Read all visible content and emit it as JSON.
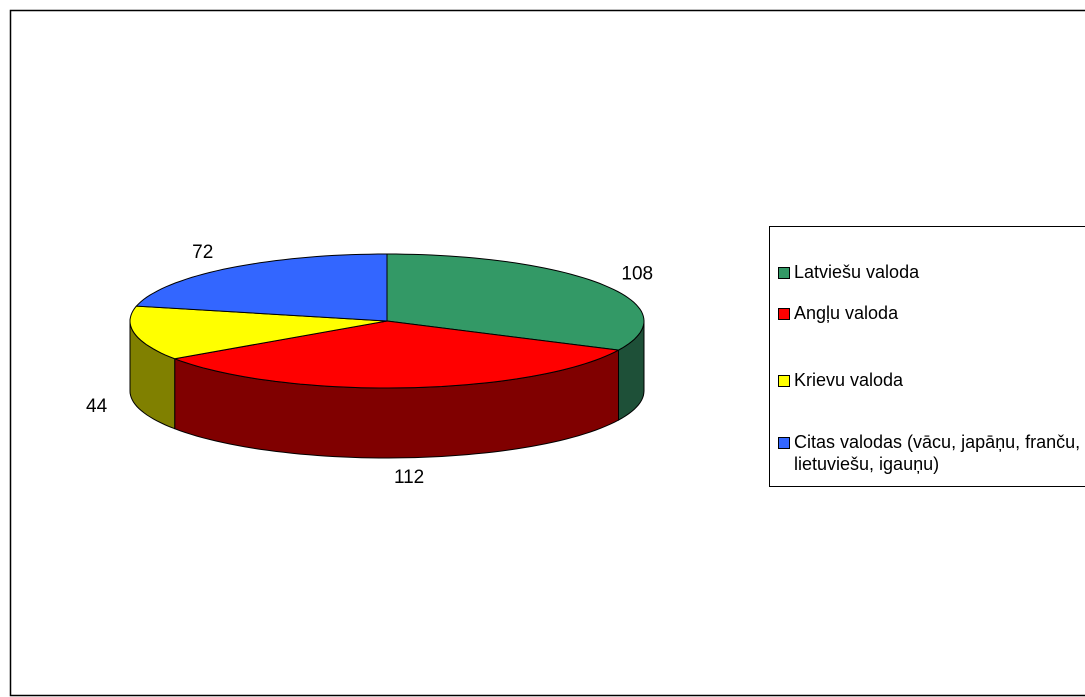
{
  "chart_data": {
    "type": "pie3d",
    "categories": [
      "Latviešu valoda",
      "Angļu valoda",
      "Krievu valoda",
      "Citas valodas (vācu, japāņu, franču, lietuviešu, igauņu)"
    ],
    "values": [
      108,
      112,
      44,
      72
    ],
    "colors": [
      "#339966",
      "#ff0000",
      "#ffff00",
      "#3366ff"
    ],
    "side_colors": [
      "#1e5038",
      "#800000",
      "#808000",
      "#1a337f"
    ]
  }
}
